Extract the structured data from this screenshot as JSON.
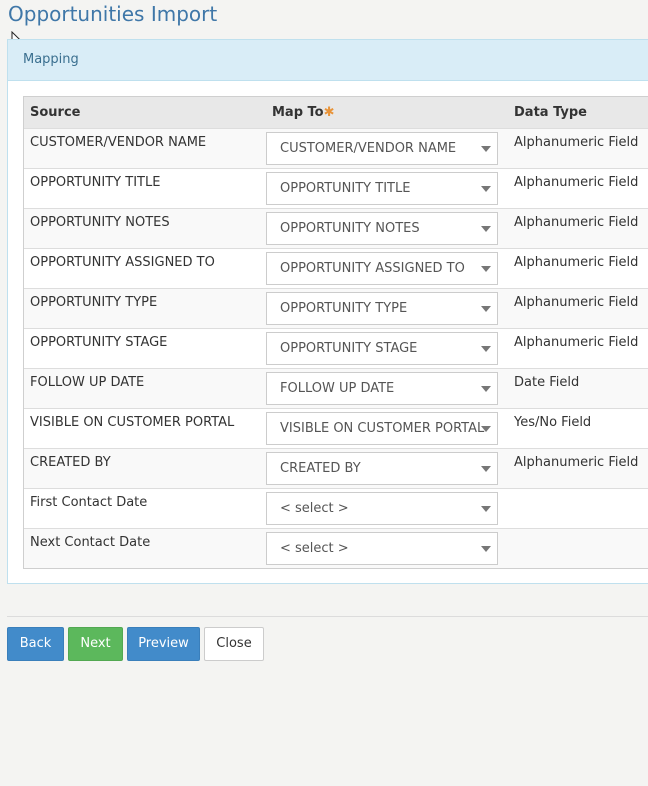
{
  "page": {
    "title": "Opportunities Import"
  },
  "panel": {
    "heading": "Mapping"
  },
  "table": {
    "headers": {
      "source": "Source",
      "map_to": "Map To",
      "required_mark": "✱",
      "data_type": "Data Type"
    },
    "rows": [
      {
        "source": "CUSTOMER/VENDOR NAME",
        "map_to": "CUSTOMER/VENDOR NAME",
        "data_type": "Alphanumeric Field"
      },
      {
        "source": "OPPORTUNITY TITLE",
        "map_to": "OPPORTUNITY TITLE",
        "data_type": "Alphanumeric Field"
      },
      {
        "source": "OPPORTUNITY NOTES",
        "map_to": "OPPORTUNITY NOTES",
        "data_type": "Alphanumeric Field"
      },
      {
        "source": "OPPORTUNITY ASSIGNED TO",
        "map_to": "OPPORTUNITY ASSIGNED TO",
        "data_type": "Alphanumeric Field"
      },
      {
        "source": "OPPORTUNITY TYPE",
        "map_to": "OPPORTUNITY TYPE",
        "data_type": "Alphanumeric Field"
      },
      {
        "source": "OPPORTUNITY STAGE",
        "map_to": "OPPORTUNITY STAGE",
        "data_type": "Alphanumeric Field"
      },
      {
        "source": "FOLLOW UP DATE",
        "map_to": "FOLLOW UP DATE",
        "data_type": "Date Field"
      },
      {
        "source": "VISIBLE ON CUSTOMER PORTAL",
        "map_to": "VISIBLE ON CUSTOMER PORTAL",
        "data_type": "Yes/No Field"
      },
      {
        "source": "CREATED BY",
        "map_to": "CREATED BY",
        "data_type": "Alphanumeric Field"
      },
      {
        "source": "First Contact Date",
        "map_to": "< select >",
        "data_type": ""
      },
      {
        "source": "Next Contact Date",
        "map_to": "< select >",
        "data_type": ""
      }
    ]
  },
  "buttons": {
    "back": "Back",
    "next": "Next",
    "preview": "Preview",
    "close": "Close"
  },
  "colors": {
    "title": "#3f77a8",
    "panel_heading_bg": "#d9edf7",
    "primary": "#428bca",
    "success": "#5cb85c",
    "required": "#e8943a"
  },
  "icons": {
    "cursor": "mouse-pointer-icon",
    "dropdown": "chevron-down-icon"
  }
}
